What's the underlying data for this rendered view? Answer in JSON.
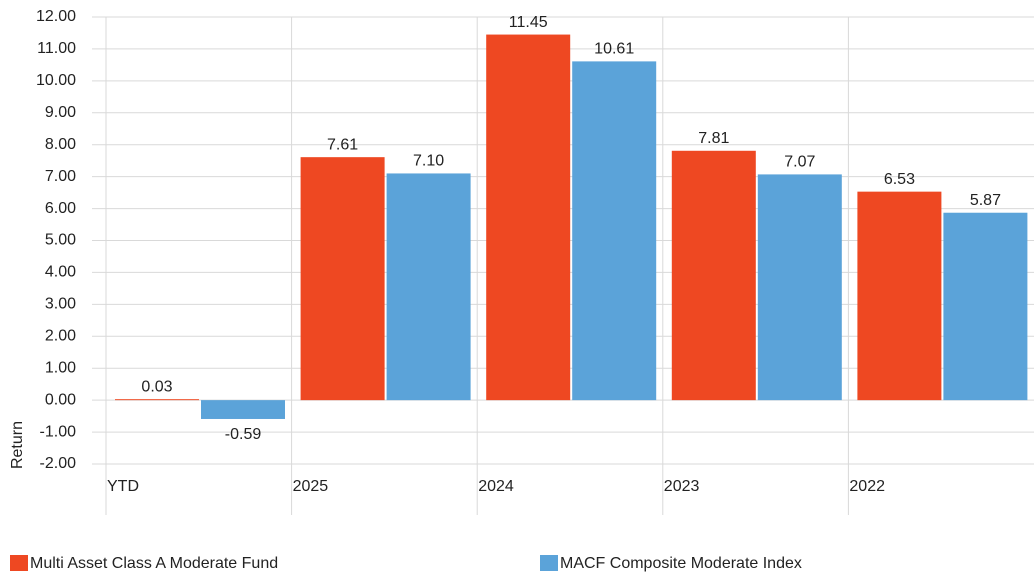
{
  "chart_data": {
    "type": "bar",
    "y_label": "Return",
    "categories": [
      "YTD",
      "2025",
      "2024",
      "2023",
      "2022"
    ],
    "series": [
      {
        "name": "Multi Asset Class A Moderate Fund",
        "color": "#ee4822",
        "values": [
          0.03,
          7.61,
          11.45,
          7.81,
          6.53
        ],
        "value_labels": [
          "0.03",
          "7.61",
          "11.45",
          "7.81",
          "6.53"
        ]
      },
      {
        "name": "MACF Composite Moderate Index",
        "color": "#5ba3d9",
        "values": [
          -0.59,
          7.1,
          10.61,
          7.07,
          5.87
        ],
        "value_labels": [
          "-0.59",
          "7.10",
          "10.61",
          "7.07",
          "5.87"
        ]
      }
    ],
    "ylim": [
      -2,
      12
    ],
    "yticks": [
      {
        "value": -2,
        "label": "-2.00"
      },
      {
        "value": -1,
        "label": "-1.00"
      },
      {
        "value": 0,
        "label": "0.00"
      },
      {
        "value": 1,
        "label": "1.00"
      },
      {
        "value": 2,
        "label": "2.00"
      },
      {
        "value": 3,
        "label": "3.00"
      },
      {
        "value": 4,
        "label": "4.00"
      },
      {
        "value": 5,
        "label": "5.00"
      },
      {
        "value": 6,
        "label": "6.00"
      },
      {
        "value": 7,
        "label": "7.00"
      },
      {
        "value": 8,
        "label": "8.00"
      },
      {
        "value": 9,
        "label": "9.00"
      },
      {
        "value": 10,
        "label": "10.00"
      },
      {
        "value": 11,
        "label": "11.00"
      },
      {
        "value": 12,
        "label": "12.00"
      }
    ],
    "grid": true
  }
}
